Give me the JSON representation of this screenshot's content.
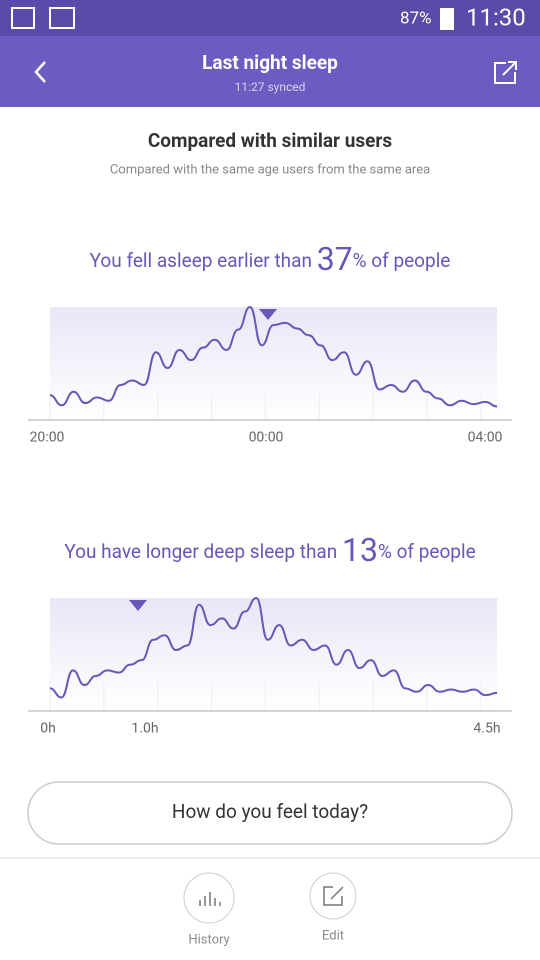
{
  "status_bar": {
    "battery": "87%",
    "time": "11:30"
  },
  "header": {
    "title": "Last night sleep",
    "subtitle": "11:27 synced"
  },
  "section": {
    "title": "Compared with similar users",
    "subtitle": "Compared with the same age users from the same area"
  },
  "charts": [
    {
      "type": "line",
      "headline_before": "You fell asleep earlier than ",
      "percent": 37,
      "headline_after": "% of people",
      "categories": [
        "20:00",
        "00:00",
        "04:00"
      ],
      "ylim": [
        0,
        100
      ],
      "color": "#6a55b8",
      "values": [
        22,
        13,
        25,
        15,
        20,
        17,
        31,
        35,
        31,
        60,
        46,
        62,
        53,
        64,
        71,
        62,
        80,
        100,
        66,
        84,
        86,
        81,
        75,
        66,
        53,
        60,
        40,
        52,
        27,
        31,
        25,
        35,
        25,
        19,
        13,
        17,
        14,
        16,
        12
      ]
    },
    {
      "type": "line",
      "headline_before": "You have longer deep sleep than ",
      "percent": 13,
      "headline_after": "% of people",
      "categories": [
        "0h",
        "1.0h",
        "4.5h"
      ],
      "ylim": [
        0,
        100
      ],
      "color": "#6a55b8",
      "values": [
        20,
        12,
        36,
        23,
        31,
        36,
        34,
        41,
        45,
        63,
        67,
        54,
        58,
        94,
        76,
        82,
        73,
        88,
        100,
        63,
        76,
        58,
        63,
        54,
        58,
        41,
        54,
        38,
        45,
        31,
        36,
        20,
        17,
        23,
        17,
        19,
        17,
        19,
        14,
        16
      ]
    }
  ],
  "button": "How do you feel today?",
  "nav": [
    "History",
    "Edit"
  ]
}
